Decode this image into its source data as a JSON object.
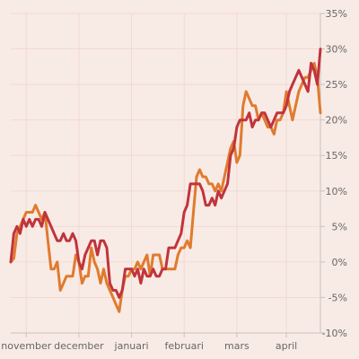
{
  "chart_data": {
    "type": "line",
    "title": "",
    "xlabel": "",
    "ylabel": "",
    "grid": true,
    "ylim": [
      -10,
      35
    ],
    "xlim": [
      0,
      100
    ],
    "y_ticks": [
      {
        "value": 35,
        "label": "35%"
      },
      {
        "value": 30,
        "label": "30%"
      },
      {
        "value": 25,
        "label": "25%"
      },
      {
        "value": 20,
        "label": "20%"
      },
      {
        "value": 15,
        "label": "15%"
      },
      {
        "value": 10,
        "label": "10%"
      },
      {
        "value": 5,
        "label": "5%"
      },
      {
        "value": 0,
        "label": "0%"
      },
      {
        "value": -5,
        "label": "-5%"
      },
      {
        "value": -10,
        "label": "-10%"
      }
    ],
    "x_ticks": [
      {
        "value": 5,
        "label": "november"
      },
      {
        "value": 22,
        "label": "december"
      },
      {
        "value": 39,
        "label": "januari"
      },
      {
        "value": 56,
        "label": "februari"
      },
      {
        "value": 73,
        "label": "mars"
      },
      {
        "value": 89,
        "label": "april"
      }
    ],
    "series": [
      {
        "color": "#e07b2e",
        "points": [
          [
            0,
            0
          ],
          [
            1,
            0.5
          ],
          [
            2,
            4
          ],
          [
            3,
            5
          ],
          [
            4,
            6
          ],
          [
            5,
            7
          ],
          [
            6,
            7
          ],
          [
            7,
            7
          ],
          [
            8,
            8
          ],
          [
            9,
            7
          ],
          [
            10,
            6
          ],
          [
            11,
            7
          ],
          [
            12,
            3
          ],
          [
            13,
            -1
          ],
          [
            14,
            -1
          ],
          [
            15,
            0
          ],
          [
            16,
            -4
          ],
          [
            17,
            -3
          ],
          [
            18,
            -2
          ],
          [
            19,
            -2
          ],
          [
            20,
            -2
          ],
          [
            21,
            1
          ],
          [
            22,
            0
          ],
          [
            23,
            -3
          ],
          [
            24,
            -2
          ],
          [
            25,
            -2
          ],
          [
            26,
            2
          ],
          [
            27,
            0
          ],
          [
            28,
            -1
          ],
          [
            29,
            -3
          ],
          [
            30,
            -1
          ],
          [
            31,
            -3
          ],
          [
            32,
            -4
          ],
          [
            33,
            -5
          ],
          [
            34,
            -6
          ],
          [
            35,
            -7
          ],
          [
            36,
            -4
          ],
          [
            37,
            -2
          ],
          [
            38,
            -2
          ],
          [
            39,
            -1
          ],
          [
            40,
            -1
          ],
          [
            41,
            0
          ],
          [
            42,
            -1
          ],
          [
            43,
            0
          ],
          [
            44,
            1
          ],
          [
            45,
            -2
          ],
          [
            46,
            1
          ],
          [
            47,
            1
          ],
          [
            48,
            1
          ],
          [
            49,
            -1
          ],
          [
            50,
            -1
          ],
          [
            51,
            -1
          ],
          [
            52,
            -1
          ],
          [
            53,
            -1
          ],
          [
            54,
            1
          ],
          [
            55,
            2
          ],
          [
            56,
            2
          ],
          [
            57,
            3
          ],
          [
            58,
            2
          ],
          [
            59,
            7
          ],
          [
            60,
            12
          ],
          [
            61,
            13
          ],
          [
            62,
            12
          ],
          [
            63,
            12
          ],
          [
            64,
            11
          ],
          [
            65,
            11
          ],
          [
            66,
            10
          ],
          [
            67,
            11
          ],
          [
            68,
            10
          ],
          [
            69,
            12
          ],
          [
            70,
            14
          ],
          [
            71,
            16
          ],
          [
            72,
            17
          ],
          [
            73,
            14
          ],
          [
            74,
            15
          ],
          [
            75,
            22
          ],
          [
            76,
            24
          ],
          [
            77,
            23
          ],
          [
            78,
            22
          ],
          [
            79,
            22
          ],
          [
            80,
            20
          ],
          [
            81,
            21
          ],
          [
            82,
            20
          ],
          [
            83,
            19
          ],
          [
            84,
            19
          ],
          [
            85,
            18
          ],
          [
            86,
            20
          ],
          [
            87,
            20
          ],
          [
            88,
            21
          ],
          [
            89,
            24
          ],
          [
            90,
            22
          ],
          [
            91,
            20
          ],
          [
            92,
            22
          ],
          [
            93,
            24
          ],
          [
            94,
            25
          ],
          [
            95,
            26
          ],
          [
            96,
            26
          ],
          [
            97,
            27
          ],
          [
            98,
            28
          ],
          [
            99,
            26
          ],
          [
            100,
            21
          ]
        ]
      },
      {
        "color": "#c0343c",
        "points": [
          [
            0,
            0
          ],
          [
            1,
            4
          ],
          [
            2,
            5
          ],
          [
            3,
            4
          ],
          [
            4,
            6
          ],
          [
            5,
            5
          ],
          [
            6,
            6
          ],
          [
            7,
            5
          ],
          [
            8,
            6
          ],
          [
            9,
            6
          ],
          [
            10,
            5
          ],
          [
            11,
            7
          ],
          [
            12,
            6
          ],
          [
            13,
            5
          ],
          [
            14,
            4
          ],
          [
            15,
            3
          ],
          [
            16,
            3
          ],
          [
            17,
            4
          ],
          [
            18,
            3
          ],
          [
            19,
            3
          ],
          [
            20,
            4
          ],
          [
            21,
            3
          ],
          [
            22,
            0
          ],
          [
            23,
            -1
          ],
          [
            24,
            1
          ],
          [
            25,
            2
          ],
          [
            26,
            3
          ],
          [
            27,
            3
          ],
          [
            28,
            1
          ],
          [
            29,
            3
          ],
          [
            30,
            3
          ],
          [
            31,
            2
          ],
          [
            32,
            -3
          ],
          [
            33,
            -4
          ],
          [
            34,
            -4
          ],
          [
            35,
            -5
          ],
          [
            36,
            -4
          ],
          [
            37,
            -1
          ],
          [
            38,
            -1
          ],
          [
            39,
            -1
          ],
          [
            40,
            -2
          ],
          [
            41,
            -1
          ],
          [
            42,
            -3
          ],
          [
            43,
            -1
          ],
          [
            44,
            -2
          ],
          [
            45,
            -2
          ],
          [
            46,
            -1
          ],
          [
            47,
            -2
          ],
          [
            48,
            -2
          ],
          [
            49,
            -1
          ],
          [
            50,
            -1
          ],
          [
            51,
            2
          ],
          [
            52,
            2
          ],
          [
            53,
            2
          ],
          [
            54,
            3
          ],
          [
            55,
            4
          ],
          [
            56,
            7
          ],
          [
            57,
            8
          ],
          [
            58,
            11
          ],
          [
            59,
            11
          ],
          [
            60,
            11
          ],
          [
            61,
            11
          ],
          [
            62,
            10
          ],
          [
            63,
            8
          ],
          [
            64,
            8
          ],
          [
            65,
            9
          ],
          [
            66,
            8
          ],
          [
            67,
            10
          ],
          [
            68,
            9
          ],
          [
            69,
            10
          ],
          [
            70,
            11
          ],
          [
            71,
            15
          ],
          [
            72,
            16
          ],
          [
            73,
            19
          ],
          [
            74,
            20
          ],
          [
            75,
            20
          ],
          [
            76,
            20
          ],
          [
            77,
            21
          ],
          [
            78,
            19
          ],
          [
            79,
            20
          ],
          [
            80,
            20
          ],
          [
            81,
            21
          ],
          [
            82,
            21
          ],
          [
            83,
            20
          ],
          [
            84,
            19
          ],
          [
            85,
            20
          ],
          [
            86,
            21
          ],
          [
            87,
            21
          ],
          [
            88,
            21
          ],
          [
            89,
            22
          ],
          [
            90,
            24
          ],
          [
            91,
            25
          ],
          [
            92,
            26
          ],
          [
            93,
            27
          ],
          [
            94,
            26
          ],
          [
            95,
            25
          ],
          [
            96,
            24
          ],
          [
            97,
            28
          ],
          [
            98,
            27
          ],
          [
            99,
            25
          ],
          [
            100,
            30
          ]
        ]
      }
    ]
  }
}
